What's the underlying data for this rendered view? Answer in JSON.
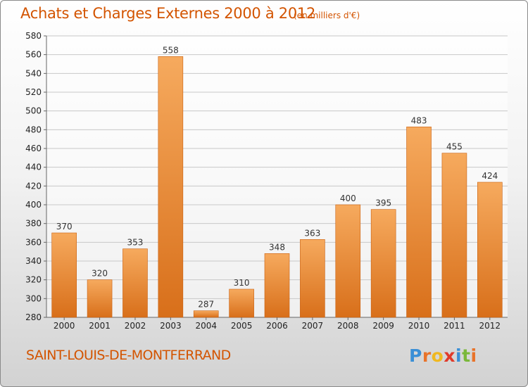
{
  "header": {
    "title": "Achats et Charges Externes 2000 à 2012",
    "unit_note": "(en milliers d'€)"
  },
  "footer": {
    "city": "SAINT-LOUIS-DE-MONTFERRAND",
    "logo": {
      "text": "Proxiti",
      "colors": [
        "#3a8fd6",
        "#e8732a",
        "#f0b820",
        "#e03a2a",
        "#3a8fd6",
        "#7ab83a",
        "#e8732a"
      ]
    }
  },
  "colors": {
    "bar_light": "#f6aa5e",
    "bar_dark": "#d86f1a",
    "title": "#d35400"
  },
  "chart_data": {
    "type": "bar",
    "title": "Achats et Charges Externes 2000 à 2012",
    "categories": [
      "2000",
      "2001",
      "2002",
      "2003",
      "2004",
      "2005",
      "2006",
      "2007",
      "2008",
      "2009",
      "2010",
      "2011",
      "2012"
    ],
    "values": [
      370,
      320,
      353,
      558,
      287,
      310,
      348,
      363,
      400,
      395,
      483,
      455,
      424
    ],
    "xlabel": "",
    "ylabel": "",
    "ylim": [
      280,
      580
    ],
    "yticks": [
      280,
      300,
      320,
      340,
      360,
      380,
      400,
      420,
      440,
      460,
      480,
      500,
      520,
      540,
      560,
      580
    ],
    "grid": true,
    "data_labels": true,
    "legend": "none"
  }
}
